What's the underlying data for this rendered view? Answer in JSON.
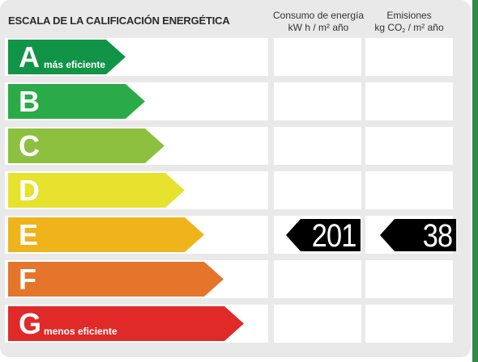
{
  "header": {
    "title": "ESCALA DE LA CALIFICACIÓN ENERGÉTICA",
    "col_energy": {
      "line1": "Consumo de energía",
      "line2": "kW h  / m² año"
    },
    "col_emissions": {
      "line1": "Emisiones",
      "line2_pre": "kg CO",
      "line2_sub": "2",
      "line2_post": "  / m² año"
    }
  },
  "rows": [
    {
      "letter": "A",
      "note": "más eficiente",
      "color": "#119448"
    },
    {
      "letter": "B",
      "note": "",
      "color": "#2bab47"
    },
    {
      "letter": "C",
      "note": "",
      "color": "#8dc03f"
    },
    {
      "letter": "D",
      "note": "",
      "color": "#e6e22d"
    },
    {
      "letter": "E",
      "note": "",
      "color": "#efb31c"
    },
    {
      "letter": "F",
      "note": "",
      "color": "#e4752b"
    },
    {
      "letter": "G",
      "note": "menos eficiente",
      "color": "#e02a28"
    }
  ],
  "rating": {
    "class": "E",
    "energy_value": "201",
    "emissions_value": "38"
  }
}
